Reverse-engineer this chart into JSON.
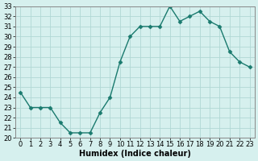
{
  "xlabel": "Humidex (Indice chaleur)",
  "ylabel": "",
  "x": [
    0,
    1,
    2,
    3,
    4,
    5,
    6,
    7,
    8,
    9,
    10,
    11,
    12,
    13,
    14,
    15,
    16,
    17,
    18,
    19,
    20,
    21,
    22,
    23
  ],
  "y": [
    24.5,
    23.0,
    23.0,
    23.0,
    21.5,
    20.5,
    20.5,
    20.5,
    22.5,
    24.0,
    27.5,
    30.0,
    31.0,
    31.0,
    31.0,
    33.0,
    31.5,
    32.0,
    32.5,
    31.5,
    31.0,
    28.5,
    27.5,
    27.0
  ],
  "ylim": [
    20,
    33
  ],
  "xlim": [
    -0.5,
    23.5
  ],
  "yticks": [
    20,
    21,
    22,
    23,
    24,
    25,
    26,
    27,
    28,
    29,
    30,
    31,
    32,
    33
  ],
  "xticks": [
    0,
    1,
    2,
    3,
    4,
    5,
    6,
    7,
    8,
    9,
    10,
    11,
    12,
    13,
    14,
    15,
    16,
    17,
    18,
    19,
    20,
    21,
    22,
    23
  ],
  "line_color": "#1a7a6e",
  "marker_color": "#1a7a6e",
  "bg_color": "#d6f0ee",
  "grid_color": "#b0d8d4",
  "axis_label_fontsize": 7,
  "tick_fontsize": 6
}
